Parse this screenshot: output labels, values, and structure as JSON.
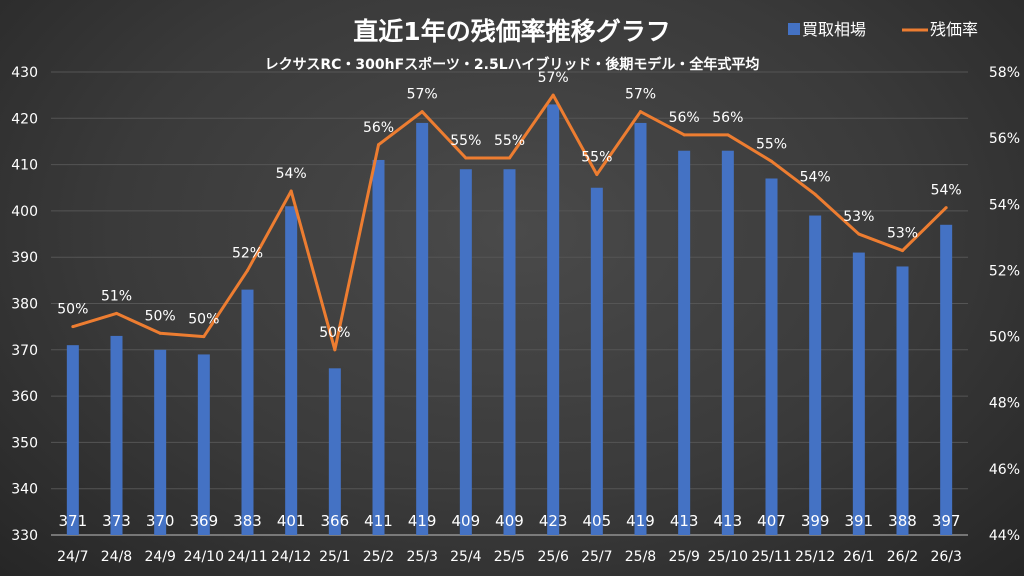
{
  "chart_data": {
    "type": "bar+line",
    "title": "直近1年の残価率推移グラフ",
    "subtitle": "レクサスRC・300hFスポーツ・2.5Lハイブリッド・後期モデル・全年式平均",
    "categories": [
      "24/7",
      "24/8",
      "24/9",
      "24/10",
      "24/11",
      "24/12",
      "25/1",
      "25/2",
      "25/3",
      "25/4",
      "25/5",
      "25/6",
      "25/7",
      "25/8",
      "25/9",
      "25/10",
      "25/11",
      "25/12",
      "26/1",
      "26/2",
      "26/3"
    ],
    "series": [
      {
        "name": "買取相場",
        "type": "bar",
        "axis": "left",
        "color": "#4472c4",
        "values": [
          371,
          373,
          370,
          369,
          383,
          401,
          366,
          411,
          419,
          409,
          409,
          423,
          405,
          419,
          413,
          413,
          407,
          399,
          391,
          388,
          397
        ],
        "labels": [
          "371",
          "373",
          "370",
          "369",
          "383",
          "401",
          "366",
          "411",
          "419",
          "409",
          "409",
          "423",
          "405",
          "419",
          "413",
          "413",
          "407",
          "399",
          "391",
          "388",
          "397"
        ]
      },
      {
        "name": "残価率",
        "type": "line",
        "axis": "right",
        "color": "#ed7d31",
        "values": [
          50.3,
          50.7,
          50.1,
          50.0,
          52.0,
          54.4,
          49.6,
          55.8,
          56.8,
          55.4,
          55.4,
          57.3,
          54.9,
          56.8,
          56.1,
          56.1,
          55.3,
          54.3,
          53.1,
          52.6,
          53.9
        ],
        "labels": [
          "50%",
          "51%",
          "50%",
          "50%",
          "52%",
          "54%",
          "50%",
          "56%",
          "57%",
          "55%",
          "55%",
          "57%",
          "55%",
          "57%",
          "56%",
          "56%",
          "55%",
          "54%",
          "53%",
          "53%",
          "54%"
        ]
      }
    ],
    "y_left": {
      "min": 330,
      "max": 430,
      "step": 10,
      "ticks": [
        "330",
        "340",
        "350",
        "360",
        "370",
        "380",
        "390",
        "400",
        "410",
        "420",
        "430"
      ]
    },
    "y_right": {
      "min": 44,
      "max": 58,
      "step": 2,
      "ticks": [
        "44%",
        "46%",
        "48%",
        "50%",
        "52%",
        "54%",
        "56%",
        "58%"
      ]
    },
    "grid": true,
    "legend": "top-right",
    "legend_entries": [
      "買取相場",
      "残価率"
    ]
  }
}
